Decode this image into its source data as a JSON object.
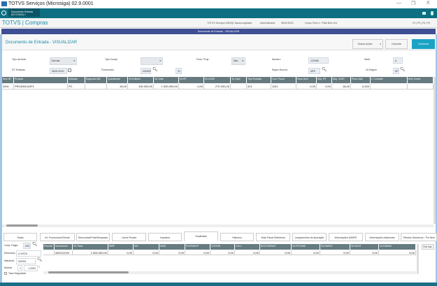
{
  "window": {
    "title": "TOTVS Serviços (Microsiga) 02.9.0001",
    "controls": [
      "—",
      "❐",
      "X"
    ]
  },
  "app_tab": {
    "label": "Documento Entrada (02.9.0002) ×"
  },
  "header": {
    "brand": "TOTVS | Compras",
    "info": [
      "TOTVS Serviços MSSQL Basecongelada",
      "Administrador",
      "08/01/2020",
      "Grupo Totvs 1 / Filial Belo Hor",
      "F4 | F5 | F6 | F9"
    ]
  },
  "window_bar": {
    "title": "Documento de Entrada - VISUALIZAR"
  },
  "panel": {
    "title": "Documento de Entrada - VISUALIZAR",
    "buttons": {
      "other": "Outras Ações",
      "cancel": "Cancelar",
      "confirm": "Confirmar"
    }
  },
  "colors": {
    "accent": "#1a8aa5",
    "appbar": "#0e6f82",
    "winbar": "#3f4f93",
    "grid_header": "#667b80",
    "confirm": "#1aa3c5"
  },
  "form": {
    "tipo_nota": {
      "label": "Tipo da Nota",
      "value": "Normal"
    },
    "tipo_compl": {
      "label": "Tipo Compl",
      "value": ""
    },
    "form_prop": {
      "label": "Form. Prop.",
      "value": "Nao"
    },
    "numero": {
      "label": "Numero",
      "value": "123456"
    },
    "serie": {
      "label": "Serie",
      "value": "A"
    },
    "dt_emissao": {
      "label": "DT Emissao",
      "value": "08/01/2020"
    },
    "fornecedor": {
      "label": "Fornecedor",
      "value": "000000",
      "loja": "01"
    },
    "espec_docum": {
      "label": "Espec.Docum.",
      "value": "NFE"
    },
    "uf_origem": {
      "label": "Uf.Origem",
      "value": "SP"
    }
  },
  "items_grid": {
    "columns": [
      "Item NF",
      "Produto",
      "Unidade",
      "Segunda UM",
      "Quantidade",
      "Vlr.Unitario",
      "Vlr.Total",
      "Vlr.IPI",
      "Vlr.ICMS",
      "Tp Oper",
      "Tipo Entrada",
      "Cod. Fiscal",
      "Desc.Item",
      "Aliq. IPI",
      "Aliq. ICMS",
      "Peso total",
      "C Contabil",
      "Item Conta"
    ],
    "rows": [
      [
        "0001",
        "PRODMCASP1",
        "PC",
        "",
        "15,00",
        "100.000,00",
        "1.500.000,00",
        "0,00",
        "270.000,00",
        "",
        "021",
        "1101",
        "0,00",
        "0,00",
        "18,00",
        "0,000",
        "",
        ""
      ]
    ]
  },
  "tabs": [
    "Totais",
    "Inf. Fornecedor/Cliente",
    "Descontos/Frete/Despesas",
    "Livros Fiscais",
    "Impostos",
    "Duplicatas",
    "Historico",
    "Nota Fiscal Eletrônica",
    "Lançamentos de Apuração",
    "Informações DANFE",
    "Informações Adicionais",
    "Tributos Genéricos - Por Item"
  ],
  "active_tab": "Duplicatas",
  "duplicatas": {
    "cond_pagto": {
      "label": "Cond. Pagto",
      "value": "003"
    },
    "descricao": {
      "label": "Descricao",
      "value": "A VISTA"
    },
    "natureza": {
      "label": "Natureza",
      "value": "000001"
    },
    "moeda": {
      "label": "Moeda",
      "value": "1",
      "taxa": "1,0000"
    },
    "taxa_negociada": {
      "label": "Taxa Negociada",
      "checked": false
    },
    "rat_imp": "Rat Imp.",
    "columns": [
      "Parcela",
      "Vencimento",
      "Vlr.Titulo",
      "IRRF",
      "ISS",
      "INSS",
      "PIS/PASEP",
      "COFINS",
      "CSLL",
      "SEST/SENAT",
      "Vlr.FETHAB",
      "Vlr.FABOV",
      "Vlr.FACS",
      "Vlr.FAMAD"
    ],
    "rows": [
      [
        "",
        "08/01/2020",
        "1.500.000,00",
        "0,00",
        "0,00",
        "0,00",
        "0,00",
        "0,00",
        "0,00",
        "0,00",
        "0,00",
        "0,00",
        "0,00",
        "0,00"
      ]
    ]
  }
}
